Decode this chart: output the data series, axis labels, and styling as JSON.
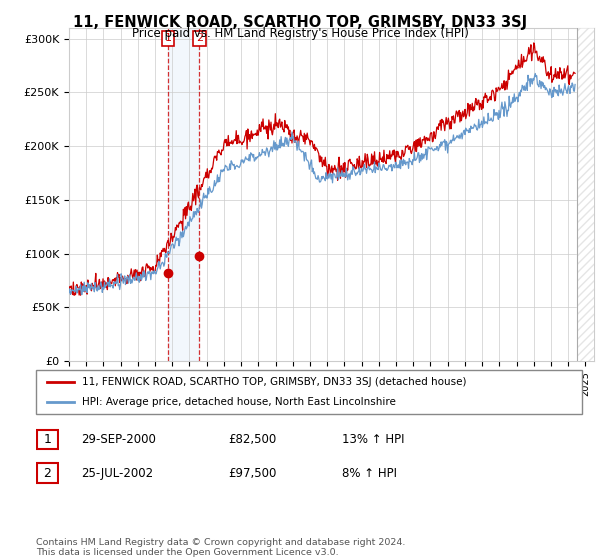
{
  "title": "11, FENWICK ROAD, SCARTHO TOP, GRIMSBY, DN33 3SJ",
  "subtitle": "Price paid vs. HM Land Registry's House Price Index (HPI)",
  "legend_line1": "11, FENWICK ROAD, SCARTHO TOP, GRIMSBY, DN33 3SJ (detached house)",
  "legend_line2": "HPI: Average price, detached house, North East Lincolnshire",
  "transaction1_label": "1",
  "transaction1_date": "29-SEP-2000",
  "transaction1_price": "£82,500",
  "transaction1_hpi": "13% ↑ HPI",
  "transaction2_label": "2",
  "transaction2_date": "25-JUL-2002",
  "transaction2_price": "£97,500",
  "transaction2_hpi": "8% ↑ HPI",
  "footnote": "Contains HM Land Registry data © Crown copyright and database right 2024.\nThis data is licensed under the Open Government Licence v3.0.",
  "red_color": "#cc0000",
  "blue_color": "#6699cc",
  "bg_color": "#ffffff",
  "grid_color": "#cccccc",
  "ylim": [
    0,
    310000
  ],
  "yticks": [
    0,
    50000,
    100000,
    150000,
    200000,
    250000,
    300000
  ],
  "ytick_labels": [
    "£0",
    "£50K",
    "£100K",
    "£150K",
    "£200K",
    "£250K",
    "£300K"
  ],
  "marker1_x": 2000.75,
  "marker1_y": 82500,
  "marker2_x": 2002.58,
  "marker2_y": 97500,
  "vline1_x": 2000.75,
  "vline2_x": 2002.58,
  "hatch_start_x": 2024.5,
  "xlim_left": 1995,
  "xlim_right": 2025.5
}
